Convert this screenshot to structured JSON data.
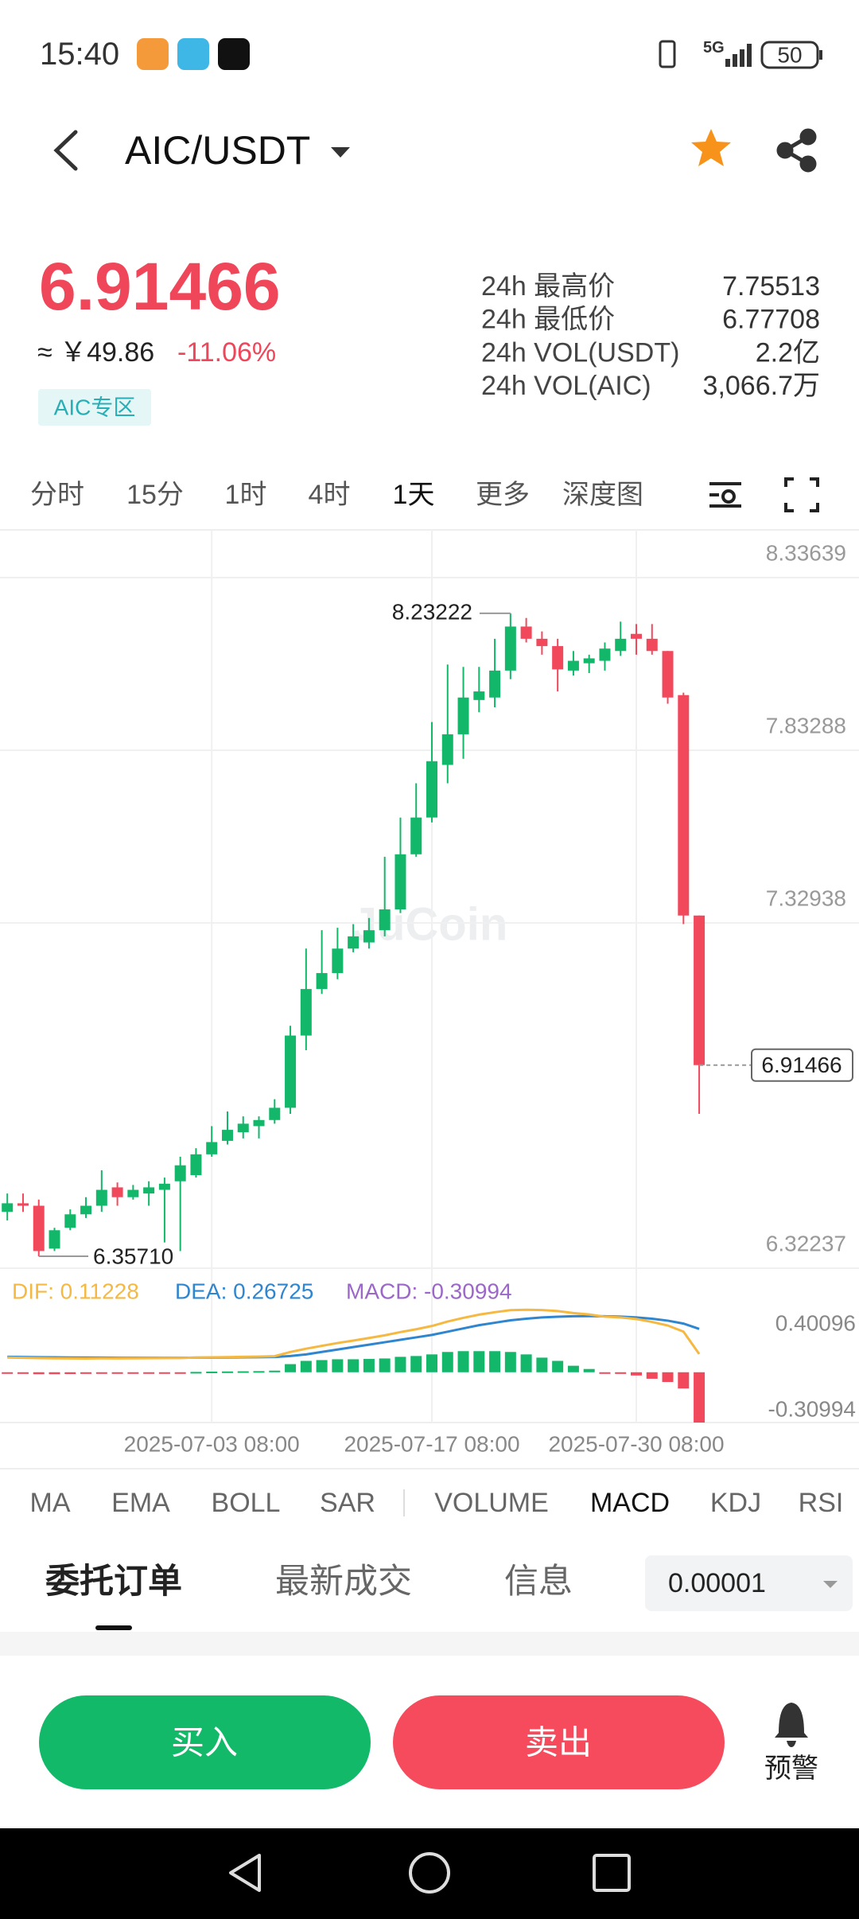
{
  "status_bar": {
    "time": "15:40",
    "network": "5G",
    "battery": "50"
  },
  "header": {
    "pair": "AIC/USDT"
  },
  "ticker": {
    "last_price": "6.91466",
    "cny_price": "≈ ￥49.86",
    "change": "-11.06%",
    "zone_tag": "AIC专区"
  },
  "stats": [
    {
      "label": "24h 最高价",
      "value": "7.75513"
    },
    {
      "label": "24h 最低价",
      "value": "6.77708"
    },
    {
      "label": "24h VOL(USDT)",
      "value": "2.2亿"
    },
    {
      "label": "24h VOL(AIC)",
      "value": "3,066.7万"
    }
  ],
  "timeframes": {
    "items": [
      "分时",
      "15分",
      "1时",
      "4时",
      "1天",
      "更多",
      "深度图"
    ],
    "active": 4
  },
  "chart_data": [
    {
      "type": "candlestick",
      "watermark": "JuCoin",
      "grid": true,
      "up_color": "#12b76a",
      "down_color": "#f2485c",
      "categories": [
        null,
        null,
        null,
        null,
        null,
        null,
        null,
        null,
        null,
        null,
        null,
        null,
        null,
        "2025-07-03 08:00",
        null,
        null,
        null,
        null,
        null,
        null,
        null,
        null,
        null,
        null,
        null,
        null,
        null,
        "2025-07-17 08:00",
        null,
        null,
        null,
        null,
        null,
        null,
        null,
        null,
        null,
        null,
        null,
        null,
        "2025-07-30 08:00",
        null,
        null,
        null,
        null
      ],
      "open": [
        6.4867,
        6.5117,
        6.5045,
        6.3795,
        6.4402,
        6.4795,
        6.5045,
        6.5581,
        6.5295,
        6.5402,
        6.5509,
        6.5759,
        6.5938,
        6.6545,
        6.6938,
        6.7188,
        6.7367,
        6.7545,
        6.7902,
        7.0009,
        7.1366,
        7.1831,
        7.2545,
        7.2724,
        7.3081,
        7.3688,
        7.5295,
        7.6367,
        7.7902,
        7.8795,
        7.9795,
        7.9867,
        8.0653,
        8.1938,
        8.1581,
        8.1367,
        8.0653,
        8.0867,
        8.0938,
        8.1224,
        8.1724,
        8.1581,
        8.1224,
        7.9938,
        7.3509
      ],
      "high": [
        6.5402,
        6.5402,
        6.5224,
        6.4402,
        6.4938,
        6.5295,
        6.6081,
        6.5724,
        6.5652,
        6.5759,
        6.5867,
        6.6474,
        6.6724,
        6.7367,
        6.7795,
        6.7652,
        6.7652,
        6.8152,
        7.0295,
        7.2545,
        7.3081,
        7.3152,
        7.3259,
        7.3438,
        7.5224,
        7.6367,
        7.7367,
        7.9153,
        8.0831,
        8.076,
        8.076,
        8.1581,
        8.23222,
        8.2188,
        8.1795,
        8.1581,
        8.1224,
        8.1117,
        8.1474,
        8.2081,
        8.201,
        8.201,
        8.1224,
        8.001,
        7.3509
      ],
      "low": [
        6.4617,
        6.4867,
        6.3571,
        6.3724,
        6.4331,
        6.4688,
        6.4867,
        6.5045,
        6.5224,
        6.5045,
        6.3974,
        6.3724,
        6.5867,
        6.6474,
        6.6831,
        6.7009,
        6.7009,
        6.7438,
        6.7724,
        6.9581,
        7.1224,
        7.1652,
        7.2438,
        7.2545,
        7.2902,
        7.3581,
        7.5224,
        7.6224,
        7.7367,
        7.8081,
        7.9438,
        7.9581,
        8.0403,
        8.1474,
        8.1117,
        8.0045,
        8.051,
        8.0581,
        8.0653,
        8.1081,
        8.1117,
        8.1117,
        7.9688,
        7.3259,
        6.7724
      ],
      "close": [
        6.5117,
        6.5045,
        6.3724,
        6.4331,
        6.4795,
        6.5045,
        6.5509,
        6.5295,
        6.5509,
        6.5581,
        6.5688,
        6.6224,
        6.6545,
        6.6902,
        6.7259,
        6.7438,
        6.7545,
        6.7902,
        7.0009,
        7.1366,
        7.1831,
        7.2545,
        7.2902,
        7.3081,
        7.3688,
        7.5295,
        7.6367,
        7.801,
        7.8795,
        7.9867,
        8.0045,
        8.0653,
        8.1938,
        8.1581,
        8.1367,
        8.0688,
        8.0938,
        8.101,
        8.1295,
        8.1581,
        8.1581,
        8.1224,
        7.9867,
        7.3509,
        6.91466
      ],
      "annotations": {
        "high": "8.23222",
        "low": "6.35710",
        "last": "6.91466"
      },
      "ylim": [
        6.32237,
        8.47568
      ],
      "yticks": [
        8.33639,
        7.83288,
        7.32938,
        6.32237
      ]
    },
    {
      "type": "macd",
      "ylim": [
        -0.30994,
        0.40096
      ],
      "yticks": [
        0.40096,
        -0.30994
      ],
      "series": [
        {
          "name": "DIF: 0.11228",
          "color": "#f5b942",
          "values": [
            0.091,
            0.089,
            0.087,
            0.086,
            0.0855,
            0.085,
            0.086,
            0.0855,
            0.086,
            0.0865,
            0.087,
            0.088,
            0.091,
            0.092,
            0.0935,
            0.095,
            0.0965,
            0.099,
            0.125,
            0.145,
            0.1625,
            0.18,
            0.195,
            0.211,
            0.2275,
            0.2475,
            0.265,
            0.285,
            0.3125,
            0.335,
            0.355,
            0.37,
            0.3825,
            0.385,
            0.383,
            0.377,
            0.365,
            0.356,
            0.3425,
            0.338,
            0.328,
            0.31,
            0.288,
            0.25,
            0.11228
          ]
        },
        {
          "name": "DEA: 0.26725",
          "color": "#2f86cf",
          "values": [
            0.095,
            0.094,
            0.093,
            0.092,
            0.091,
            0.09,
            0.09,
            0.089,
            0.089,
            0.089,
            0.089,
            0.089,
            0.09,
            0.09,
            0.091,
            0.092,
            0.093,
            0.094,
            0.1,
            0.11,
            0.125,
            0.14,
            0.155,
            0.17,
            0.185,
            0.2,
            0.215,
            0.23,
            0.25,
            0.27,
            0.29,
            0.305,
            0.32,
            0.33,
            0.338,
            0.342,
            0.345,
            0.346,
            0.345,
            0.343,
            0.338,
            0.33,
            0.318,
            0.3,
            0.26725
          ]
        },
        {
          "name": "MACD: -0.30994",
          "color": "#9b67c9",
          "up_color": "#12b76a",
          "down_color": "#f2485c",
          "values": [
            -0.008,
            -0.01,
            -0.012,
            -0.012,
            -0.011,
            -0.01,
            -0.008,
            -0.007,
            -0.006,
            -0.005,
            -0.004,
            -0.002,
            0.002,
            0.004,
            0.005,
            0.006,
            0.007,
            0.01,
            0.05,
            0.07,
            0.075,
            0.08,
            0.08,
            0.082,
            0.085,
            0.095,
            0.1,
            0.11,
            0.125,
            0.13,
            0.13,
            0.13,
            0.125,
            0.11,
            0.09,
            0.07,
            0.04,
            0.02,
            -0.005,
            -0.01,
            -0.02,
            -0.04,
            -0.06,
            -0.1,
            -0.30994
          ]
        }
      ]
    }
  ],
  "indicators": {
    "items": [
      "MA",
      "EMA",
      "BOLL",
      "SAR",
      "VOLUME",
      "MACD",
      "KDJ",
      "RSI"
    ],
    "active": 5
  },
  "order_tabs": {
    "items": [
      "委托订单",
      "最新成交",
      "信息"
    ],
    "active": 0,
    "precision": "0.00001"
  },
  "actions": {
    "buy": "买入",
    "sell": "卖出",
    "alert": "预警"
  }
}
